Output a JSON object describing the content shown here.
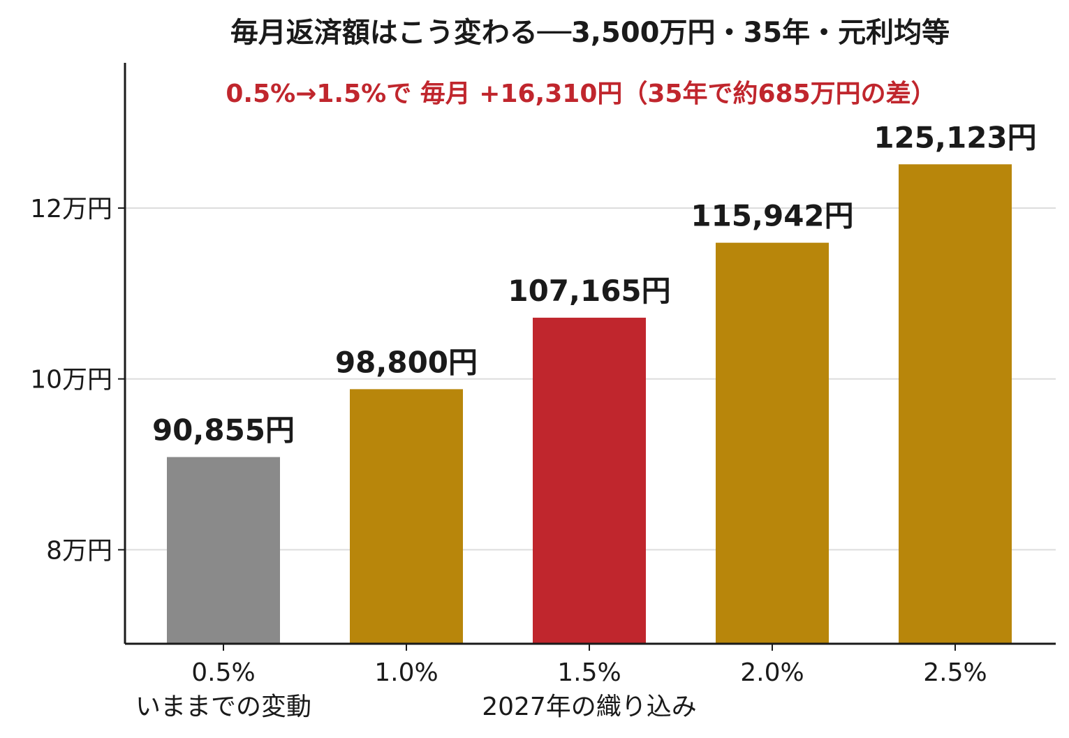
{
  "chart_data": {
    "type": "bar",
    "title": "毎月返済額はこう変わる──3,500万円・35年・元利均等",
    "annotation": "0.5%→1.5%で 毎月 +16,310円（35年で約685万円の差）",
    "categories": [
      "0.5%",
      "1.0%",
      "1.5%",
      "2.0%",
      "2.5%"
    ],
    "values": [
      90855,
      98800,
      107165,
      115942,
      125123
    ],
    "value_labels": [
      "90,855円",
      "98,800円",
      "107,165円",
      "115,942円",
      "125,123円"
    ],
    "bar_colors": [
      "#8a8a8a",
      "#b8860b",
      "#c0262d",
      "#b8860b",
      "#b8860b"
    ],
    "xlabel": "",
    "ylabel": "",
    "ylim": [
      69000,
      137000
    ],
    "y_ticks": [
      80000,
      100000,
      120000
    ],
    "y_tick_labels": [
      "8万円",
      "10万円",
      "12万円"
    ],
    "group_labels": [
      {
        "text": "いままでの変動",
        "category_index": 0
      },
      {
        "text": "2027年の織り込み",
        "category_index": 2
      }
    ],
    "grid": "horizontal",
    "legend": "none",
    "colors": {
      "annotation": "#c0262d",
      "text": "#1a1a1a",
      "axis": "#1a1a1a",
      "grid": "#dddddd"
    }
  }
}
